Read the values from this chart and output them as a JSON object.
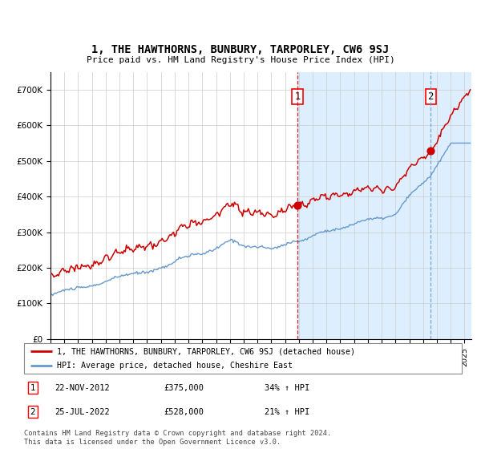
{
  "title": "1, THE HAWTHORNS, BUNBURY, TARPORLEY, CW6 9SJ",
  "subtitle": "Price paid vs. HM Land Registry's House Price Index (HPI)",
  "legend_line1": "1, THE HAWTHORNS, BUNBURY, TARPORLEY, CW6 9SJ (detached house)",
  "legend_line2": "HPI: Average price, detached house, Cheshire East",
  "transaction1_date": "22-NOV-2012",
  "transaction1_price": "£375,000",
  "transaction1_hpi": "34% ↑ HPI",
  "transaction1_x": 2012.9,
  "transaction1_y": 375000,
  "transaction2_date": "25-JUL-2022",
  "transaction2_price": "£528,000",
  "transaction2_hpi": "21% ↑ HPI",
  "transaction2_x": 2022.55,
  "transaction2_y": 528000,
  "footnote": "Contains HM Land Registry data © Crown copyright and database right 2024.\nThis data is licensed under the Open Government Licence v3.0.",
  "red_line_color": "#cc0000",
  "blue_line_color": "#6699cc",
  "shading_color": "#ddeeff",
  "grid_color": "#cccccc",
  "ylim": [
    0,
    750000
  ],
  "yticks": [
    0,
    100000,
    200000,
    300000,
    400000,
    500000,
    600000,
    700000
  ],
  "ytick_labels": [
    "£0",
    "£100K",
    "£200K",
    "£300K",
    "£400K",
    "£500K",
    "£600K",
    "£700K"
  ],
  "xlim_start": 1995.0,
  "xlim_end": 2025.5,
  "background_color": "#ffffff"
}
